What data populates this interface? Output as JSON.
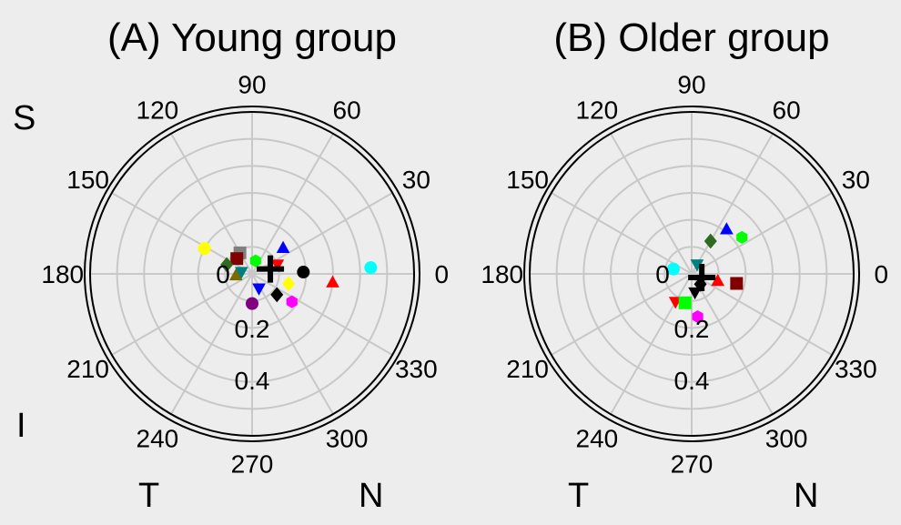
{
  "chart_data": [
    {
      "type": "scatter",
      "subtype": "polar",
      "title": "(A) Young group",
      "angle_ticks": [
        "0",
        "30",
        "60",
        "90",
        "120",
        "150",
        "180",
        "210",
        "240",
        "270",
        "300",
        "330"
      ],
      "radial_tick_labels": [
        "0",
        "0.2",
        "0.4"
      ],
      "rlim": [
        0,
        0.6
      ],
      "grid": true,
      "quadrant_labels": {
        "top_left": "S",
        "bottom_left": "I",
        "bottom_mid_left": "T",
        "bottom_right": "N"
      },
      "points": [
        {
          "angle": 152,
          "r": 0.2,
          "marker": "circle",
          "color": "#ffff00"
        },
        {
          "angle": 120,
          "r": 0.09,
          "marker": "square",
          "color": "#808080"
        },
        {
          "angle": 135,
          "r": 0.08,
          "marker": "square",
          "color": "#800000"
        },
        {
          "angle": 160,
          "r": 0.1,
          "marker": "diamond",
          "color": "#2e6b1f"
        },
        {
          "angle": 185,
          "r": 0.06,
          "marker": "triangle-up",
          "color": "#7a6a00"
        },
        {
          "angle": 170,
          "r": 0.04,
          "marker": "triangle-down",
          "color": "#008080"
        },
        {
          "angle": 75,
          "r": 0.05,
          "marker": "hexagon",
          "color": "#00ff00"
        },
        {
          "angle": 20,
          "r": 0.1,
          "marker": "triangle-down",
          "color": "#ff0000"
        },
        {
          "angle": 40,
          "r": 0.15,
          "marker": "triangle-up",
          "color": "#0000ff"
        },
        {
          "angle": 2,
          "r": 0.19,
          "marker": "circle",
          "color": "#000000"
        },
        {
          "angle": 3,
          "r": 0.44,
          "marker": "circle",
          "color": "#00ffff"
        },
        {
          "angle": -6,
          "r": 0.3,
          "marker": "triangle-up",
          "color": "#ff0000"
        },
        {
          "angle": -15,
          "r": 0.14,
          "marker": "diamond",
          "color": "#ffff00"
        },
        {
          "angle": -40,
          "r": 0.12,
          "marker": "diamond",
          "color": "#000000"
        },
        {
          "angle": -35,
          "r": 0.18,
          "marker": "hexagon",
          "color": "#ff00ff"
        },
        {
          "angle": -65,
          "r": 0.06,
          "marker": "triangle-down",
          "color": "#0000ff"
        },
        {
          "angle": -90,
          "r": 0.11,
          "marker": "circle",
          "color": "#800080"
        }
      ],
      "mean_marker": {
        "angle": 15,
        "r": 0.07,
        "marker": "cross",
        "color": "#000000"
      }
    },
    {
      "type": "scatter",
      "subtype": "polar",
      "title": "(B) Older group",
      "angle_ticks": [
        "0",
        "30",
        "60",
        "90",
        "120",
        "150",
        "180",
        "210",
        "240",
        "270",
        "300",
        "330"
      ],
      "radial_tick_labels": [
        "0",
        "0.2",
        "0.4"
      ],
      "rlim": [
        0,
        0.6
      ],
      "grid": true,
      "quadrant_labels": {
        "bottom_mid_left": "T",
        "bottom_right": "N"
      },
      "points": [
        {
          "angle": 52,
          "r": 0.21,
          "marker": "triangle-up",
          "color": "#0000ff"
        },
        {
          "angle": 60,
          "r": 0.14,
          "marker": "diamond",
          "color": "#2e6b1f"
        },
        {
          "angle": 36,
          "r": 0.23,
          "marker": "hexagon",
          "color": "#00ff00"
        },
        {
          "angle": 165,
          "r": 0.07,
          "marker": "circle",
          "color": "#00ffff"
        },
        {
          "angle": 60,
          "r": 0.04,
          "marker": "triangle-down",
          "color": "#008080"
        },
        {
          "angle": -12,
          "r": 0.17,
          "marker": "square",
          "color": "#800000"
        },
        {
          "angle": -15,
          "r": 0.1,
          "marker": "triangle-up",
          "color": "#ff0000"
        },
        {
          "angle": -80,
          "r": 0.07,
          "marker": "triangle-down",
          "color": "#000000"
        },
        {
          "angle": -50,
          "r": 0.05,
          "marker": "diamond",
          "color": "#000000"
        },
        {
          "angle": -120,
          "r": 0.12,
          "marker": "triangle-down",
          "color": "#ff0000"
        },
        {
          "angle": -103,
          "r": 0.11,
          "marker": "square",
          "color": "#00ff00"
        },
        {
          "angle": -82,
          "r": 0.16,
          "marker": "hexagon",
          "color": "#ff00ff"
        }
      ],
      "mean_marker": {
        "angle": -20,
        "r": 0.04,
        "marker": "cross",
        "color": "#000000"
      }
    }
  ]
}
